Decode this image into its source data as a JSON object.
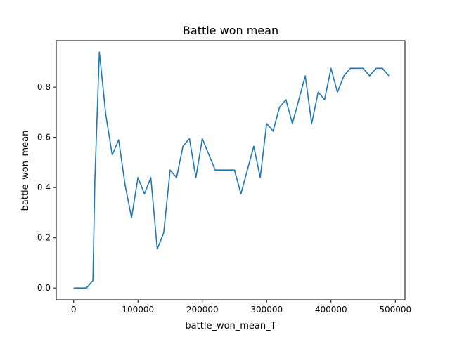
{
  "chart_data": {
    "type": "line",
    "title": "Battle won mean",
    "xlabel": "battle_won_mean_T",
    "ylabel": "battle_won_mean",
    "xlim": [
      -27000,
      515000
    ],
    "ylim": [
      -0.047,
      0.985
    ],
    "xticks": [
      {
        "value": 0,
        "label": "0"
      },
      {
        "value": 100000,
        "label": "100000"
      },
      {
        "value": 200000,
        "label": "200000"
      },
      {
        "value": 300000,
        "label": "300000"
      },
      {
        "value": 400000,
        "label": "400000"
      },
      {
        "value": 500000,
        "label": "500000"
      }
    ],
    "yticks": [
      {
        "value": 0.0,
        "label": "0.0"
      },
      {
        "value": 0.2,
        "label": "0.2"
      },
      {
        "value": 0.4,
        "label": "0.4"
      },
      {
        "value": 0.6,
        "label": "0.6"
      },
      {
        "value": 0.8,
        "label": "0.8"
      }
    ],
    "grid": false,
    "series": [
      {
        "color": "#1f77b4",
        "x": [
          0,
          20000,
          30000,
          33000,
          40000,
          50000,
          60000,
          70000,
          80000,
          90000,
          100000,
          110000,
          120000,
          130000,
          140000,
          150000,
          160000,
          170000,
          180000,
          190000,
          200000,
          220000,
          240000,
          250000,
          260000,
          280000,
          290000,
          300000,
          310000,
          320000,
          330000,
          340000,
          360000,
          370000,
          380000,
          390000,
          400000,
          410000,
          420000,
          430000,
          440000,
          450000,
          460000,
          470000,
          480000,
          490000
        ],
        "y": [
          0.0,
          0.0,
          0.03,
          0.43,
          0.94,
          0.69,
          0.53,
          0.59,
          0.41,
          0.28,
          0.44,
          0.375,
          0.44,
          0.155,
          0.22,
          0.47,
          0.44,
          0.565,
          0.595,
          0.44,
          0.595,
          0.47,
          0.47,
          0.47,
          0.375,
          0.565,
          0.44,
          0.655,
          0.625,
          0.72,
          0.75,
          0.655,
          0.845,
          0.655,
          0.78,
          0.75,
          0.875,
          0.78,
          0.845,
          0.875,
          0.875,
          0.875,
          0.845,
          0.875,
          0.875,
          0.845
        ]
      }
    ]
  }
}
